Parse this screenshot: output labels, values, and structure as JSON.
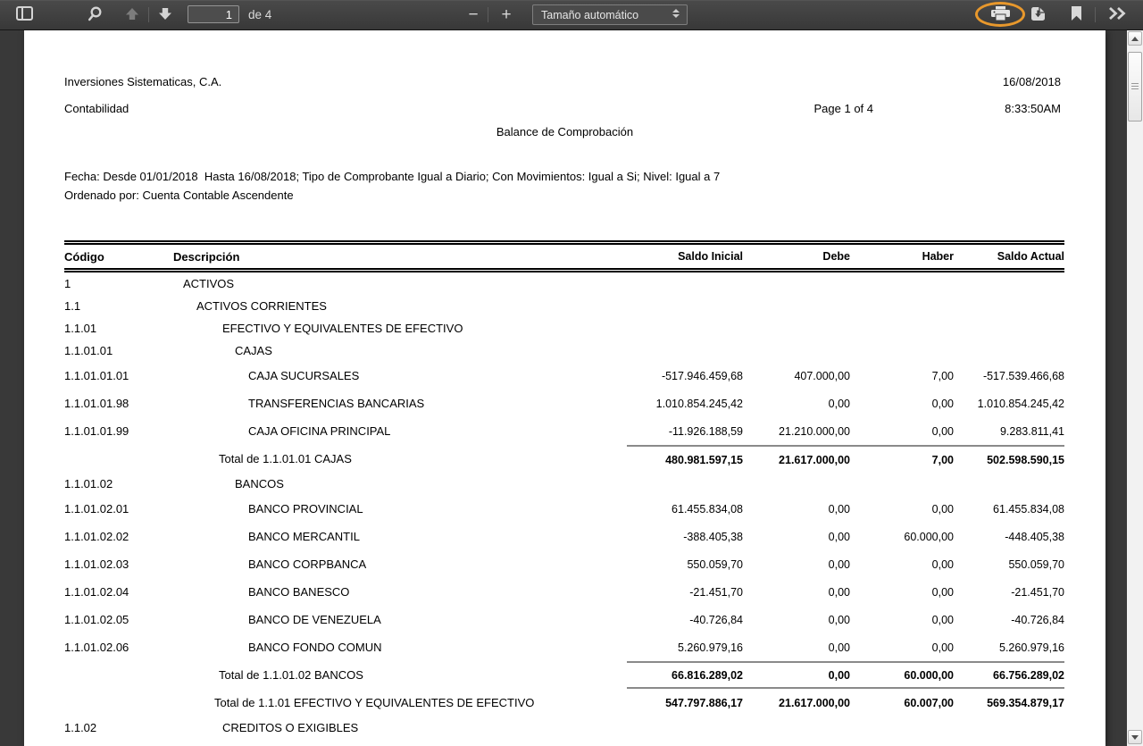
{
  "toolbar": {
    "page_input_value": "1",
    "page_count_label": "de 4",
    "zoom_out_label": "−",
    "zoom_in_label": "+",
    "zoom_select_value": "Tamaño automático",
    "icons": {
      "sidebar_toggle": "panel-toggle",
      "search": "magnifier",
      "page_previous": "arrow-up",
      "page_next": "arrow-down",
      "print": "printer",
      "download": "document-download",
      "bookmark": "bookmark-flag",
      "secondary_toolbar": "double-chevron-right"
    }
  },
  "annotation": {
    "shape": "ellipse",
    "color": "#E8982C",
    "target": "print-button"
  },
  "document": {
    "company": "Inversiones Sistematicas, C.A.",
    "date": "16/08/2018",
    "module": "Contabilidad",
    "page_label": "Page 1 of 4",
    "time": "8:33:50AM",
    "title": "Balance de Comprobación",
    "filters_line1": "Fecha: Desde 01/01/2018  Hasta 16/08/2018; Tipo de Comprobante Igual a Diario; Con Movimientos: Igual a Si; Nivel: Igual a 7",
    "filters_line2": "Ordenado por: Cuenta Contable Ascendente",
    "table": {
      "headers": [
        "Código",
        "Descripción",
        "Saldo Inicial",
        "Debe",
        "Haber",
        "Saldo Actual"
      ],
      "rows": [
        {
          "code": "1",
          "desc": "ACTIVOS",
          "level": 1,
          "type": "group"
        },
        {
          "code": "1.1",
          "desc": "ACTIVOS CORRIENTES",
          "level": 2,
          "type": "group"
        },
        {
          "code": "1.1.01",
          "desc": "EFECTIVO Y EQUIVALENTES DE EFECTIVO",
          "level": 3,
          "type": "group"
        },
        {
          "code": "1.1.01.01",
          "desc": "CAJAS",
          "level": 4,
          "type": "group"
        },
        {
          "code": "1.1.01.01.01",
          "desc": "CAJA SUCURSALES",
          "level": 5,
          "type": "data",
          "si": "-517.946.459,68",
          "debe": "407.000,00",
          "haber": "7,00",
          "sa": "-517.539.466,68"
        },
        {
          "code": "1.1.01.01.98",
          "desc": "TRANSFERENCIAS BANCARIAS",
          "level": 5,
          "type": "data",
          "si": "1.010.854.245,42",
          "debe": "0,00",
          "haber": "0,00",
          "sa": "1.010.854.245,42"
        },
        {
          "code": "1.1.01.01.99",
          "desc": "CAJA OFICINA PRINCIPAL",
          "level": 5,
          "type": "data",
          "si": "-11.926.188,59",
          "debe": "21.210.000,00",
          "haber": "0,00",
          "sa": "9.283.811,41"
        },
        {
          "code": "",
          "desc": "Total de 1.1.01.01 CAJAS",
          "level": 4,
          "type": "total",
          "rule_above": true,
          "si": "480.981.597,15",
          "debe": "21.617.000,00",
          "haber": "7,00",
          "sa": "502.598.590,15"
        },
        {
          "code": "1.1.01.02",
          "desc": "BANCOS",
          "level": 4,
          "type": "group"
        },
        {
          "code": "1.1.01.02.01",
          "desc": "BANCO PROVINCIAL",
          "level": 5,
          "type": "data",
          "si": "61.455.834,08",
          "debe": "0,00",
          "haber": "0,00",
          "sa": "61.455.834,08"
        },
        {
          "code": "1.1.01.02.02",
          "desc": "BANCO MERCANTIL",
          "level": 5,
          "type": "data",
          "si": "-388.405,38",
          "debe": "0,00",
          "haber": "60.000,00",
          "sa": "-448.405,38"
        },
        {
          "code": "1.1.01.02.03",
          "desc": "BANCO CORPBANCA",
          "level": 5,
          "type": "data",
          "si": "550.059,70",
          "debe": "0,00",
          "haber": "0,00",
          "sa": "550.059,70"
        },
        {
          "code": "1.1.01.02.04",
          "desc": "BANCO BANESCO",
          "level": 5,
          "type": "data",
          "si": "-21.451,70",
          "debe": "0,00",
          "haber": "0,00",
          "sa": "-21.451,70"
        },
        {
          "code": "1.1.01.02.05",
          "desc": "BANCO DE VENEZUELA",
          "level": 5,
          "type": "data",
          "si": "-40.726,84",
          "debe": "0,00",
          "haber": "0,00",
          "sa": "-40.726,84"
        },
        {
          "code": "1.1.01.02.06",
          "desc": "BANCO FONDO COMUN",
          "level": 5,
          "type": "data",
          "si": "5.260.979,16",
          "debe": "0,00",
          "haber": "0,00",
          "sa": "5.260.979,16"
        },
        {
          "code": "",
          "desc": "Total de 1.1.01.02 BANCOS",
          "level": 4,
          "type": "total",
          "rule_above": true,
          "rule_below": true,
          "si": "66.816.289,02",
          "debe": "0,00",
          "haber": "60.000,00",
          "sa": "66.756.289,02"
        },
        {
          "code": "",
          "desc": "Total de 1.1.01 EFECTIVO Y EQUIVALENTES DE EFECTIVO",
          "level": 3,
          "type": "total",
          "si": "547.797.886,17",
          "debe": "21.617.000,00",
          "haber": "60.007,00",
          "sa": "569.354.879,17"
        },
        {
          "code": "1.1.02",
          "desc": "CREDITOS O EXIGIBLES",
          "level": 3,
          "type": "group"
        }
      ]
    }
  }
}
